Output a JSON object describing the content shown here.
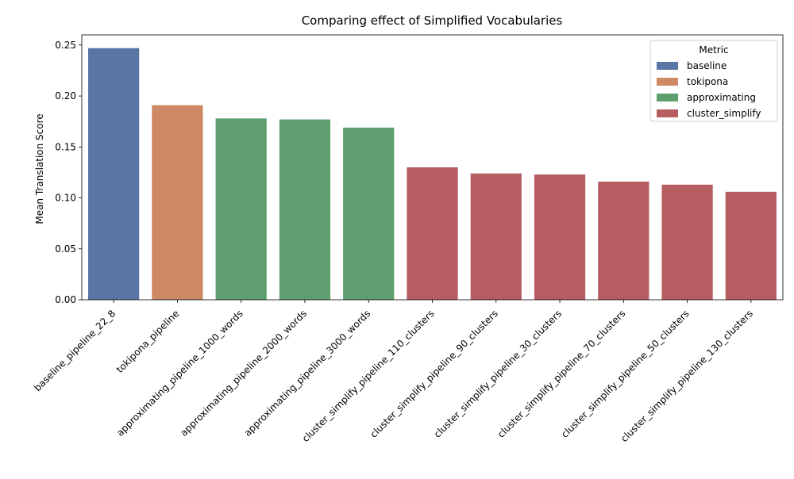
{
  "chart_data": {
    "type": "bar",
    "title": "Comparing effect of Simplified Vocabularies",
    "xlabel": "",
    "ylabel": "Mean Translation Score",
    "ylim": [
      0,
      0.26
    ],
    "yticks": [
      "0.00",
      "0.05",
      "0.10",
      "0.15",
      "0.20",
      "0.25"
    ],
    "grid": false,
    "legend": {
      "title": "Metric",
      "placement": "top-right",
      "entries": [
        {
          "name": "baseline",
          "color": "#5875a4"
        },
        {
          "name": "tokipona",
          "color": "#cc8963"
        },
        {
          "name": "approximating",
          "color": "#5f9e6e"
        },
        {
          "name": "cluster_simplify",
          "color": "#b55d60"
        }
      ]
    },
    "categories": [
      "baseline_pipeline_22_8",
      "tokipona_pipeline",
      "approximating_pipeline_1000_words",
      "approximating_pipeline_2000_words",
      "approximating_pipeline_3000_words",
      "cluster_simplify_pipeline_110_clusters",
      "cluster_simplify_pipeline_90_clusters",
      "cluster_simplify_pipeline_30_clusters",
      "cluster_simplify_pipeline_70_clusters",
      "cluster_simplify_pipeline_50_clusters",
      "cluster_simplify_pipeline_130_clusters"
    ],
    "values": [
      0.247,
      0.191,
      0.178,
      0.177,
      0.169,
      0.13,
      0.124,
      0.123,
      0.116,
      0.113,
      0.106
    ],
    "metric": [
      "baseline",
      "tokipona",
      "approximating",
      "approximating",
      "approximating",
      "cluster_simplify",
      "cluster_simplify",
      "cluster_simplify",
      "cluster_simplify",
      "cluster_simplify",
      "cluster_simplify"
    ]
  }
}
